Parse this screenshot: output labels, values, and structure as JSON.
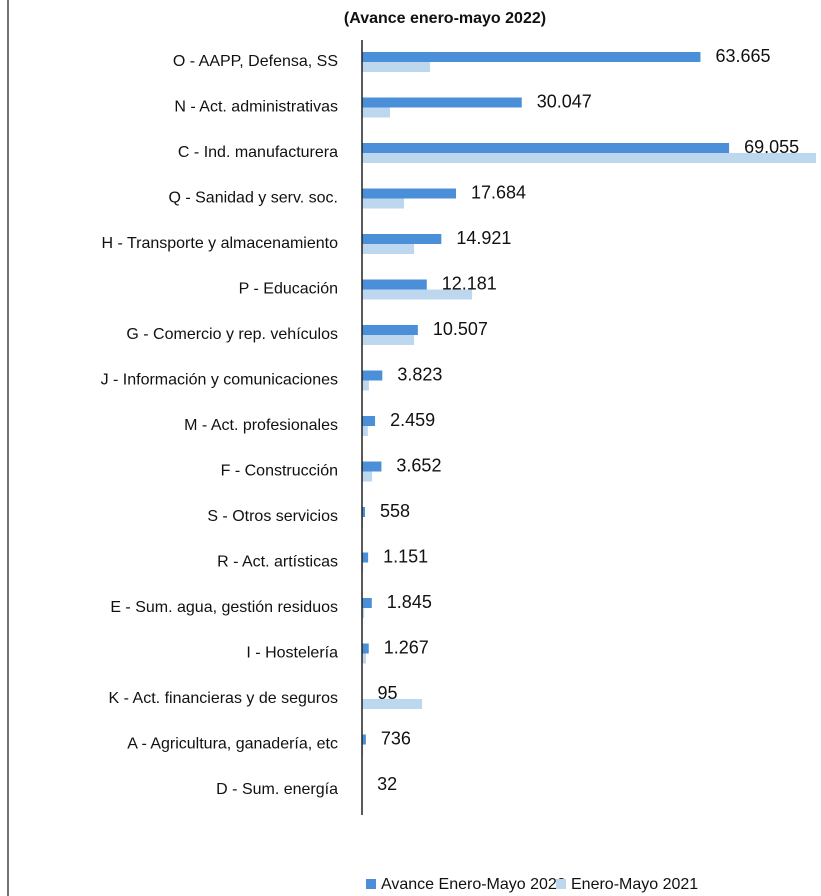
{
  "chart_data": {
    "type": "bar",
    "orientation": "horizontal",
    "title": "(Avance enero-mayo 2022)",
    "categories": [
      "O - AAPP, Defensa, SS",
      "N - Act. administrativas",
      "C - Ind. manufacturera",
      "Q - Sanidad y serv. soc.",
      "H - Transporte y almacenamiento",
      "P - Educación",
      "G - Comercio y rep. vehículos",
      "J - Información y comunicaciones",
      "M - Act. profesionales",
      "F - Construcción",
      "S - Otros servicios",
      "R - Act. artísticas",
      "E - Sum. agua, gestión residuos",
      "I - Hostelería",
      "K - Act. financieras y de seguros",
      "A - Agricultura, ganadería, etc",
      "D - Sum. energía"
    ],
    "series": [
      {
        "name": "Avance Enero-Mayo 2022",
        "color": "#4a8fd8",
        "values": [
          63665,
          30047,
          69055,
          17684,
          14921,
          12181,
          10507,
          3823,
          2459,
          3652,
          558,
          1151,
          1845,
          1267,
          95,
          736,
          32
        ],
        "value_labels": [
          "63.665",
          "30.047",
          "69.055",
          "17.684",
          "14.921",
          "12.181",
          "10.507",
          "3.823",
          "2.459",
          "3.652",
          "558",
          "1.151",
          "1.845",
          "1.267",
          "95",
          "736",
          "32"
        ]
      },
      {
        "name": "Enero-Mayo 2021",
        "color": "#bdd7ee",
        "values": [
          12800,
          5270,
          85400,
          7900,
          9800,
          20700,
          9800,
          1300,
          1100,
          1900,
          200,
          200,
          400,
          750,
          11300,
          200,
          50
        ]
      }
    ],
    "legend": "bottom"
  }
}
